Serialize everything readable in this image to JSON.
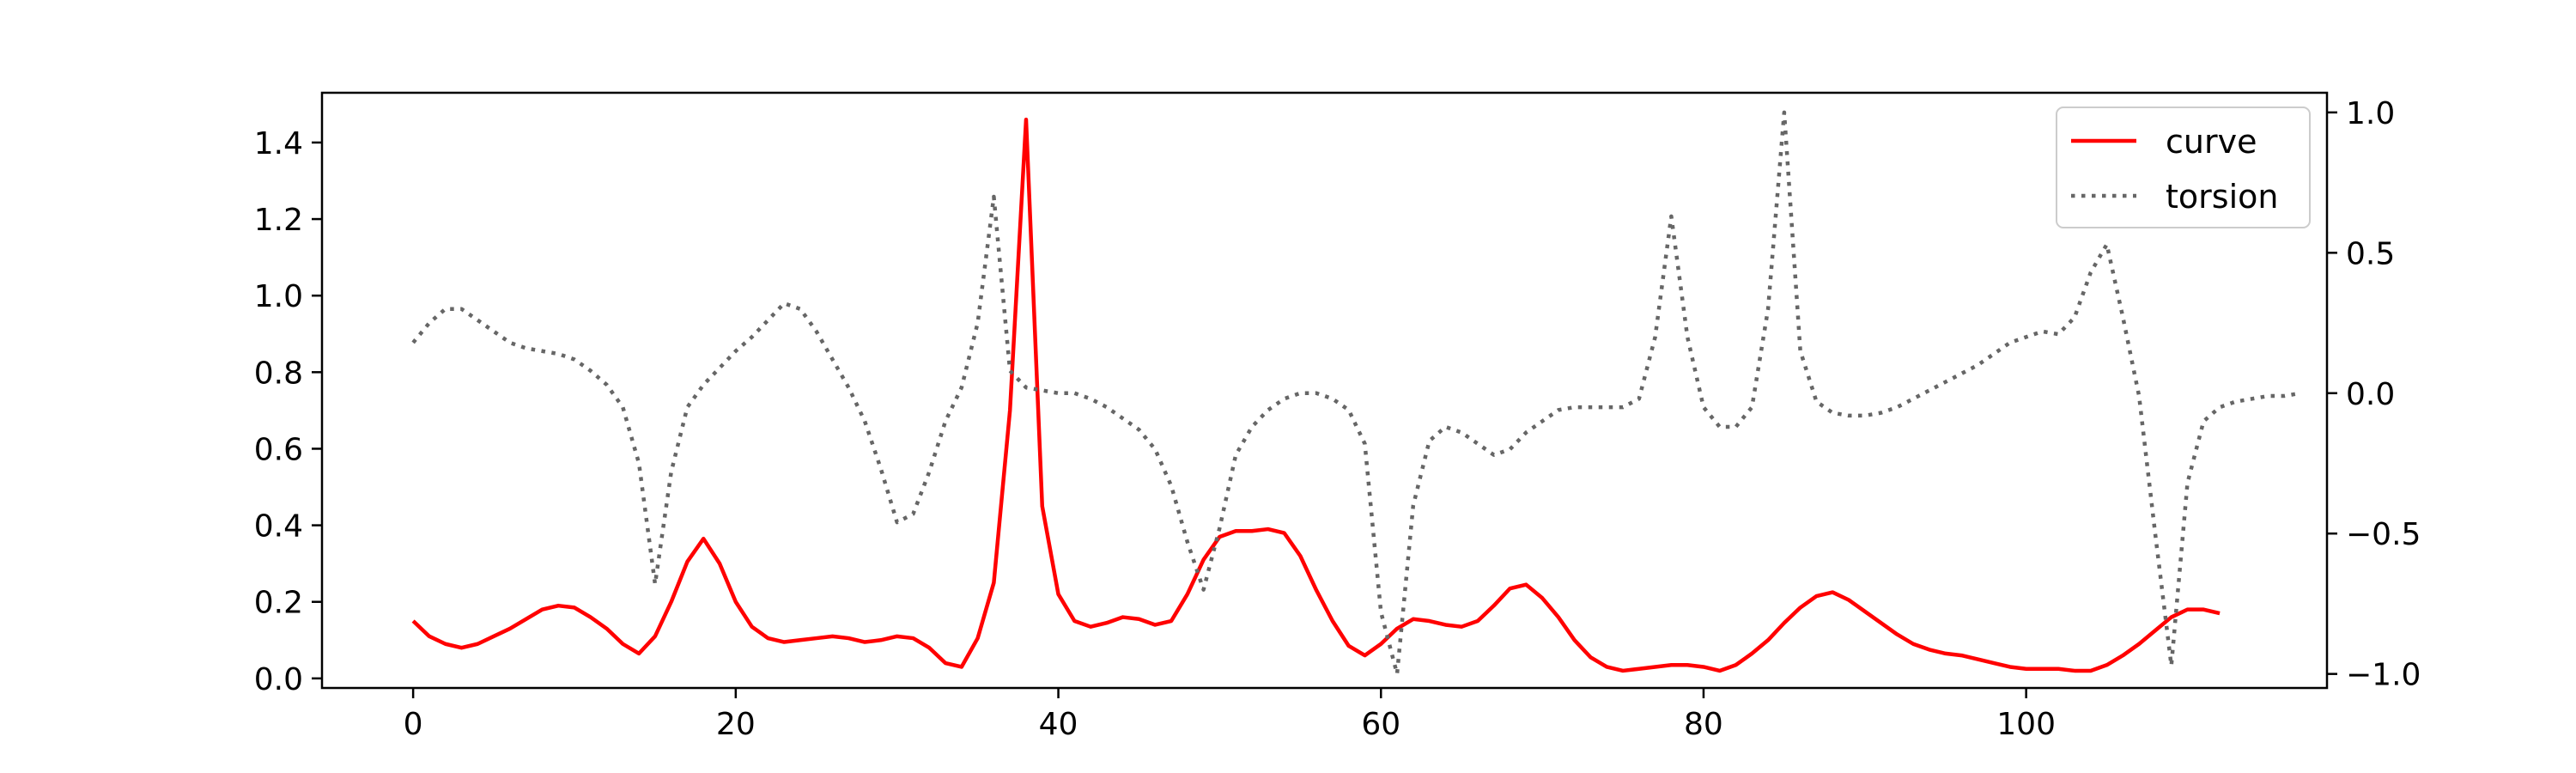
{
  "chart_data": {
    "type": "line",
    "title": "",
    "xlabel": "",
    "ylabel": "",
    "xlim": [
      -5.65,
      118.65
    ],
    "ylim": [
      -0.025,
      1.53
    ],
    "y2lim": [
      -1.05,
      1.07
    ],
    "x_ticks": [
      0,
      20,
      40,
      60,
      80,
      100
    ],
    "y_ticks": [
      0.0,
      0.2,
      0.4,
      0.6,
      0.8,
      1.0,
      1.2,
      1.4
    ],
    "y2_ticks": [
      -1.0,
      -0.5,
      0.0,
      0.5,
      1.0
    ],
    "x_tick_labels": [
      "0",
      "20",
      "40",
      "60",
      "80",
      "100"
    ],
    "y_tick_labels": [
      "0.0",
      "0.2",
      "0.4",
      "0.6",
      "0.8",
      "1.0",
      "1.2",
      "1.4"
    ],
    "y2_tick_labels": [
      "−1.0",
      "−0.5",
      "0.0",
      "0.5",
      "1.0"
    ],
    "grid": false,
    "legend": "top-right",
    "series": [
      {
        "name": "curve",
        "axis": "left",
        "color": "#ff0000",
        "style": "solid",
        "x_start": 0,
        "x_step": 1,
        "values": [
          0.15,
          0.11,
          0.09,
          0.08,
          0.09,
          0.11,
          0.13,
          0.155,
          0.18,
          0.19,
          0.185,
          0.16,
          0.13,
          0.09,
          0.065,
          0.11,
          0.2,
          0.305,
          0.365,
          0.3,
          0.2,
          0.135,
          0.105,
          0.095,
          0.1,
          0.105,
          0.11,
          0.105,
          0.095,
          0.1,
          0.11,
          0.105,
          0.08,
          0.04,
          0.03,
          0.105,
          0.25,
          0.7,
          1.46,
          0.45,
          0.22,
          0.15,
          0.135,
          0.145,
          0.16,
          0.155,
          0.14,
          0.15,
          0.22,
          0.31,
          0.37,
          0.385,
          0.385,
          0.39,
          0.38,
          0.32,
          0.23,
          0.15,
          0.085,
          0.06,
          0.09,
          0.13,
          0.155,
          0.15,
          0.14,
          0.135,
          0.15,
          0.19,
          0.235,
          0.245,
          0.21,
          0.16,
          0.1,
          0.055,
          0.03,
          0.02,
          0.025,
          0.03,
          0.035,
          0.035,
          0.03,
          0.02,
          0.035,
          0.065,
          0.1,
          0.145,
          0.185,
          0.215,
          0.225,
          0.205,
          0.175,
          0.145,
          0.115,
          0.09,
          0.075,
          0.065,
          0.06,
          0.05,
          0.04,
          0.03,
          0.025,
          0.025,
          0.025,
          0.02,
          0.02,
          0.035,
          0.06,
          0.09,
          0.125,
          0.16,
          0.18,
          0.18,
          0.17
        ]
      },
      {
        "name": "torsion",
        "axis": "right",
        "color": "#666666",
        "style": "dotted",
        "x_start": 0,
        "x_step": 1,
        "values": [
          0.18,
          0.25,
          0.3,
          0.3,
          0.26,
          0.22,
          0.18,
          0.16,
          0.15,
          0.14,
          0.12,
          0.08,
          0.03,
          -0.05,
          -0.25,
          -0.68,
          -0.28,
          -0.05,
          0.03,
          0.09,
          0.15,
          0.2,
          0.26,
          0.32,
          0.3,
          0.22,
          0.12,
          0.02,
          -0.1,
          -0.27,
          -0.46,
          -0.43,
          -0.28,
          -0.1,
          0.02,
          0.25,
          0.7,
          0.08,
          0.02,
          0.01,
          0.0,
          0.0,
          -0.02,
          -0.05,
          -0.09,
          -0.13,
          -0.2,
          -0.33,
          -0.53,
          -0.7,
          -0.48,
          -0.22,
          -0.12,
          -0.06,
          -0.02,
          0.0,
          0.0,
          -0.02,
          -0.06,
          -0.18,
          -0.78,
          -1.0,
          -0.4,
          -0.17,
          -0.12,
          -0.14,
          -0.18,
          -0.22,
          -0.2,
          -0.14,
          -0.1,
          -0.06,
          -0.05,
          -0.05,
          -0.05,
          -0.05,
          -0.02,
          0.2,
          0.63,
          0.2,
          -0.05,
          -0.12,
          -0.12,
          -0.05,
          0.3,
          1.0,
          0.15,
          -0.03,
          -0.07,
          -0.08,
          -0.08,
          -0.07,
          -0.05,
          -0.02,
          0.01,
          0.04,
          0.07,
          0.1,
          0.14,
          0.18,
          0.2,
          0.22,
          0.21,
          0.27,
          0.43,
          0.53,
          0.27,
          -0.01,
          -0.5,
          -0.97,
          -0.32,
          -0.1,
          -0.05,
          -0.03,
          -0.02,
          -0.01,
          -0.01,
          0.0
        ]
      }
    ]
  }
}
